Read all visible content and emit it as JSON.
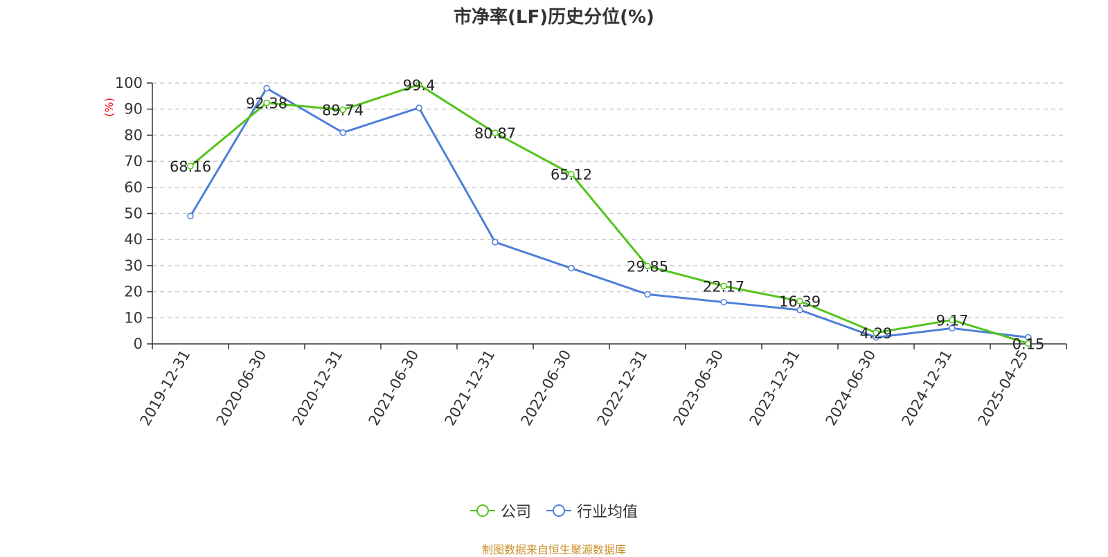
{
  "title": "市净率(LF)历史分位(%)",
  "footer": "制图数据来自恒生聚源数据库",
  "colors": {
    "company": "#52c41a",
    "industry": "#4e7fd9",
    "ylabel": "#ff0000"
  },
  "chart_data": {
    "type": "line",
    "title": "市净率(LF)历史分位(%)",
    "xlabel": "",
    "ylabel": "(%)",
    "ylim": [
      0,
      100
    ],
    "yticks": [
      "0",
      "10",
      "20",
      "30",
      "40",
      "50",
      "60",
      "70",
      "80",
      "90",
      "100"
    ],
    "categories": [
      "2019-12-31",
      "2020-06-30",
      "2020-12-31",
      "2021-06-30",
      "2021-12-31",
      "2022-06-30",
      "2022-12-31",
      "2023-06-30",
      "2023-12-31",
      "2024-06-30",
      "2024-12-31",
      "2025-04-25"
    ],
    "grid": true,
    "legend_position": "bottom",
    "series": [
      {
        "name": "公司",
        "values": [
          68.16,
          92.38,
          89.74,
          99.4,
          80.87,
          65.12,
          29.85,
          22.17,
          16.39,
          4.29,
          9.17,
          0.15
        ],
        "labels": [
          "68.16",
          "92.38",
          "89.74",
          "99.4",
          "80.87",
          "65.12",
          "29.85",
          "22.17",
          "16.39",
          "4.29",
          "9.17",
          "0.15"
        ]
      },
      {
        "name": "行业均值",
        "values": [
          49,
          98,
          81,
          90.5,
          39,
          29,
          19,
          16,
          13,
          2.5,
          6,
          2.5
        ]
      }
    ]
  }
}
